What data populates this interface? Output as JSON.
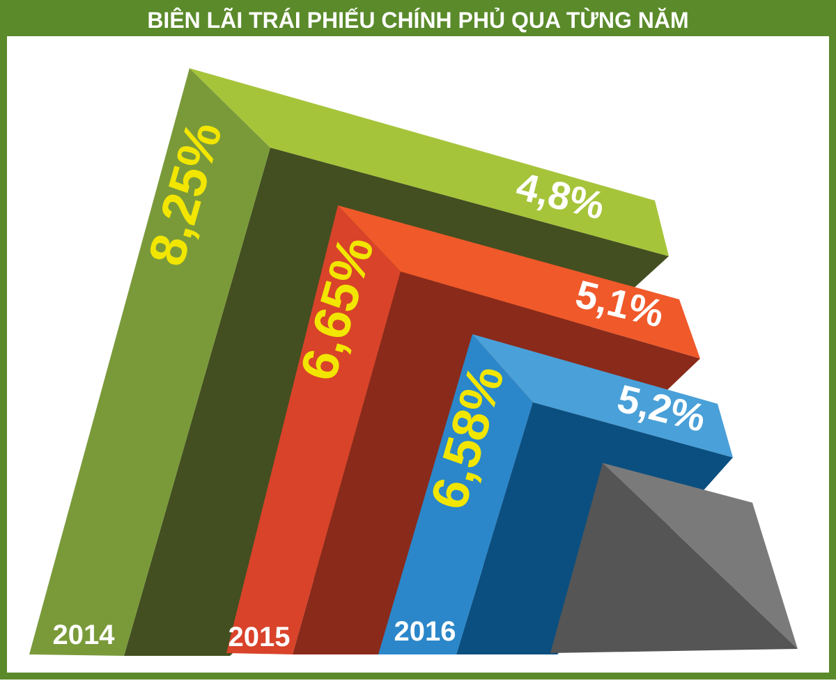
{
  "title": "BIÊN LÃI TRÁI PHIẾU CHÍNH PHỦ QUA TỪNG NĂM",
  "items": [
    {
      "year": "2014",
      "high": "8,25%",
      "low": "4,8%"
    },
    {
      "year": "2015",
      "high": "6,65%",
      "low": "5,1%"
    },
    {
      "year": "2016",
      "high": "6,58%",
      "low": "5,2%"
    }
  ]
}
